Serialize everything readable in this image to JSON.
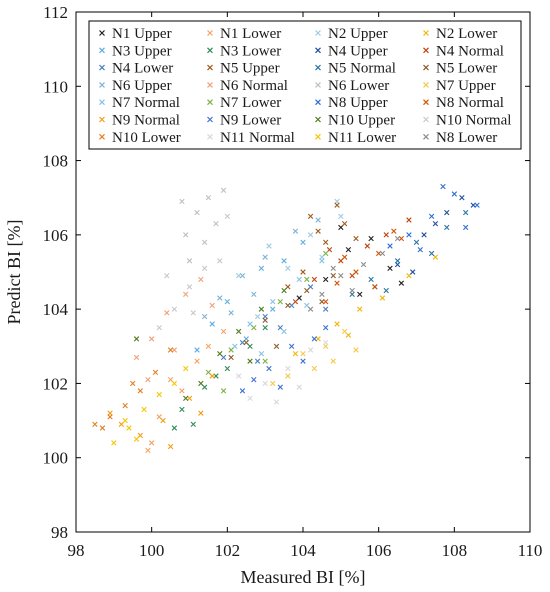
{
  "chart_data": {
    "type": "scatter",
    "xlabel": "Measured BI [%]",
    "ylabel": "Predict BI [%]",
    "xlim": [
      98,
      110
    ],
    "ylim": [
      98,
      112
    ],
    "xticks": [
      98,
      100,
      102,
      104,
      106,
      108,
      110
    ],
    "yticks": [
      98,
      100,
      102,
      104,
      106,
      108,
      110,
      112
    ],
    "xtick_labels": [
      "98",
      "100",
      "102",
      "104",
      "106",
      "108",
      "110"
    ],
    "ytick_labels": [
      "98",
      "100",
      "102",
      "104",
      "106",
      "108",
      "110",
      "112"
    ],
    "grid": false,
    "legend_position": "top",
    "marker": "x",
    "series": [
      {
        "name": "N1 Upper",
        "color": "#1f1f1f",
        "points": [
          [
            105.2,
            105.6
          ],
          [
            105.8,
            105.9
          ],
          [
            106.3,
            105.1
          ],
          [
            104.6,
            104.8
          ],
          [
            105.0,
            106.2
          ],
          [
            106.6,
            104.7
          ],
          [
            103.9,
            104.3
          ],
          [
            105.5,
            104.4
          ]
        ]
      },
      {
        "name": "N1 Lower",
        "color": "#f4a261",
        "points": [
          [
            99.9,
            100.2
          ],
          [
            100.2,
            101.1
          ],
          [
            100.8,
            101.8
          ],
          [
            101.2,
            102.6
          ],
          [
            100.0,
            100.4
          ],
          [
            101.5,
            103.0
          ],
          [
            100.5,
            102.1
          ],
          [
            101.9,
            103.4
          ]
        ]
      },
      {
        "name": "N2 Upper",
        "color": "#9ecae1",
        "points": [
          [
            102.3,
            104.9
          ],
          [
            103.1,
            105.7
          ],
          [
            104.2,
            106.0
          ],
          [
            104.9,
            106.9
          ],
          [
            103.6,
            105.1
          ],
          [
            102.8,
            103.8
          ],
          [
            104.5,
            105.4
          ],
          [
            105.0,
            106.5
          ]
        ]
      },
      {
        "name": "N2 Lower",
        "color": "#f2b705",
        "points": [
          [
            104.4,
            103.2
          ],
          [
            104.9,
            103.6
          ],
          [
            105.5,
            104.0
          ],
          [
            106.1,
            104.3
          ],
          [
            103.8,
            102.8
          ],
          [
            106.8,
            104.9
          ],
          [
            107.5,
            105.4
          ],
          [
            105.2,
            103.3
          ]
        ]
      },
      {
        "name": "N3 Upper",
        "color": "#5dade2",
        "points": [
          [
            102.0,
            104.2
          ],
          [
            102.9,
            105.1
          ],
          [
            103.5,
            105.3
          ],
          [
            101.6,
            103.6
          ],
          [
            104.0,
            105.8
          ],
          [
            102.5,
            103.2
          ],
          [
            103.2,
            104.0
          ],
          [
            101.2,
            102.9
          ]
        ]
      },
      {
        "name": "N3 Lower",
        "color": "#2e8b57",
        "points": [
          [
            100.8,
            101.3
          ],
          [
            101.4,
            101.9
          ],
          [
            102.0,
            102.4
          ],
          [
            102.6,
            103.0
          ],
          [
            101.1,
            100.9
          ],
          [
            103.0,
            103.5
          ],
          [
            101.7,
            102.2
          ],
          [
            100.6,
            100.8
          ]
        ]
      },
      {
        "name": "N4 Upper",
        "color": "#1f4e9e",
        "points": [
          [
            106.5,
            105.2
          ],
          [
            107.2,
            106.0
          ],
          [
            107.8,
            106.6
          ],
          [
            108.2,
            107.0
          ],
          [
            106.9,
            105.0
          ],
          [
            107.5,
            106.3
          ],
          [
            108.5,
            106.8
          ],
          [
            105.9,
            104.6
          ]
        ]
      },
      {
        "name": "N4 Normal",
        "color": "#c1440e",
        "points": [
          [
            104.3,
            104.8
          ],
          [
            105.0,
            105.3
          ],
          [
            105.7,
            105.7
          ],
          [
            106.2,
            106.0
          ],
          [
            103.8,
            104.2
          ],
          [
            105.3,
            104.9
          ],
          [
            106.8,
            106.4
          ],
          [
            104.7,
            105.6
          ]
        ]
      },
      {
        "name": "N4 Lower",
        "color": "#4a7fbf",
        "points": [
          [
            102.4,
            103.1
          ],
          [
            103.0,
            103.8
          ],
          [
            103.7,
            104.1
          ],
          [
            104.2,
            104.6
          ],
          [
            102.8,
            102.6
          ],
          [
            103.4,
            103.5
          ],
          [
            101.9,
            102.7
          ],
          [
            104.6,
            104.0
          ]
        ]
      },
      {
        "name": "N5 Upper",
        "color": "#a05a1b",
        "points": [
          [
            104.0,
            105.0
          ],
          [
            104.6,
            105.8
          ],
          [
            105.1,
            106.3
          ],
          [
            104.2,
            106.5
          ],
          [
            103.6,
            104.6
          ],
          [
            105.4,
            105.9
          ],
          [
            104.9,
            106.8
          ],
          [
            104.4,
            106.1
          ]
        ]
      },
      {
        "name": "N5 Normal",
        "color": "#2874a6",
        "points": [
          [
            105.8,
            104.8
          ],
          [
            106.5,
            105.3
          ],
          [
            107.0,
            105.8
          ],
          [
            107.8,
            106.2
          ],
          [
            106.2,
            104.5
          ],
          [
            105.3,
            104.4
          ],
          [
            107.4,
            105.5
          ],
          [
            108.3,
            106.6
          ]
        ]
      },
      {
        "name": "N5 Lower",
        "color": "#8b5a2b",
        "points": [
          [
            103.0,
            103.7
          ],
          [
            103.6,
            104.1
          ],
          [
            104.1,
            104.5
          ],
          [
            102.5,
            103.1
          ],
          [
            104.5,
            104.2
          ],
          [
            103.3,
            103.0
          ],
          [
            102.1,
            102.7
          ],
          [
            104.8,
            104.9
          ]
        ]
      },
      {
        "name": "N6 Upper",
        "color": "#7fb3d5",
        "points": [
          [
            101.8,
            104.3
          ],
          [
            102.4,
            104.9
          ],
          [
            103.0,
            105.4
          ],
          [
            103.8,
            106.1
          ],
          [
            101.4,
            103.8
          ],
          [
            102.7,
            104.4
          ],
          [
            104.4,
            106.4
          ],
          [
            102.1,
            103.9
          ]
        ]
      },
      {
        "name": "N6 Normal",
        "color": "#f0a07a",
        "points": [
          [
            100.0,
            103.2
          ],
          [
            100.4,
            103.9
          ],
          [
            100.9,
            104.4
          ],
          [
            101.3,
            104.8
          ],
          [
            99.6,
            102.7
          ],
          [
            100.6,
            102.9
          ],
          [
            101.6,
            104.1
          ],
          [
            99.9,
            102.1
          ]
        ]
      },
      {
        "name": "N6 Lower",
        "color": "#bfbfbf",
        "points": [
          [
            100.9,
            106.0
          ],
          [
            101.2,
            106.6
          ],
          [
            101.5,
            107.0
          ],
          [
            101.7,
            106.3
          ],
          [
            101.0,
            105.3
          ],
          [
            101.4,
            105.8
          ],
          [
            100.8,
            106.9
          ],
          [
            101.9,
            107.2
          ]
        ]
      },
      {
        "name": "N7 Upper",
        "color": "#f6c945",
        "points": [
          [
            104.0,
            102.8
          ],
          [
            104.6,
            103.0
          ],
          [
            105.1,
            103.4
          ],
          [
            103.6,
            102.2
          ],
          [
            105.4,
            102.9
          ],
          [
            104.3,
            102.4
          ],
          [
            103.2,
            102.0
          ],
          [
            104.8,
            102.6
          ]
        ]
      },
      {
        "name": "N7 Normal",
        "color": "#85c1e9",
        "points": [
          [
            102.6,
            103.6
          ],
          [
            103.2,
            104.2
          ],
          [
            103.9,
            104.8
          ],
          [
            104.5,
            105.3
          ],
          [
            102.2,
            103.0
          ],
          [
            103.5,
            103.4
          ],
          [
            104.1,
            104.1
          ],
          [
            102.9,
            102.8
          ]
        ]
      },
      {
        "name": "N7 Lower",
        "color": "#7cb342",
        "points": [
          [
            101.5,
            102.3
          ],
          [
            102.1,
            102.9
          ],
          [
            102.7,
            103.5
          ],
          [
            103.4,
            104.2
          ],
          [
            104.1,
            104.8
          ],
          [
            101.9,
            101.8
          ],
          [
            103.0,
            102.6
          ],
          [
            104.6,
            105.5
          ]
        ]
      },
      {
        "name": "N8 Upper",
        "color": "#2e6fd1",
        "points": [
          [
            106.8,
            106.0
          ],
          [
            107.4,
            106.5
          ],
          [
            108.0,
            107.1
          ],
          [
            108.6,
            106.8
          ],
          [
            107.1,
            105.6
          ],
          [
            108.3,
            106.2
          ],
          [
            106.3,
            105.7
          ],
          [
            107.7,
            107.3
          ]
        ]
      },
      {
        "name": "N8 Normal",
        "color": "#d35400",
        "points": [
          [
            105.4,
            105.0
          ],
          [
            106.0,
            105.5
          ],
          [
            106.6,
            105.9
          ],
          [
            104.9,
            104.7
          ],
          [
            105.9,
            104.6
          ],
          [
            106.4,
            106.1
          ],
          [
            104.6,
            104.2
          ],
          [
            105.1,
            105.4
          ]
        ]
      },
      {
        "name": "N9 Normal",
        "color": "#f39c12",
        "points": [
          [
            100.3,
            101.0
          ],
          [
            101.0,
            101.6
          ],
          [
            101.6,
            102.2
          ],
          [
            99.7,
            100.6
          ],
          [
            100.5,
            100.3
          ],
          [
            101.3,
            101.2
          ],
          [
            99.2,
            100.9
          ],
          [
            98.9,
            101.2
          ]
        ]
      },
      {
        "name": "N9 Lower",
        "color": "#3b6fd6",
        "points": [
          [
            103.1,
            102.4
          ],
          [
            103.7,
            103.0
          ],
          [
            104.3,
            103.2
          ],
          [
            102.7,
            102.1
          ],
          [
            104.0,
            102.6
          ],
          [
            103.4,
            101.9
          ],
          [
            104.6,
            103.5
          ],
          [
            102.4,
            101.8
          ]
        ]
      },
      {
        "name": "N10 Upper",
        "color": "#4b7a1a",
        "points": [
          [
            101.8,
            102.8
          ],
          [
            102.3,
            103.4
          ],
          [
            102.9,
            104.0
          ],
          [
            103.5,
            104.5
          ],
          [
            101.3,
            102.0
          ],
          [
            100.9,
            101.6
          ],
          [
            102.6,
            102.6
          ],
          [
            99.6,
            103.2
          ]
        ]
      },
      {
        "name": "N10 Normal",
        "color": "#c8c8c8",
        "points": [
          [
            100.6,
            104.0
          ],
          [
            101.0,
            104.6
          ],
          [
            101.4,
            105.1
          ],
          [
            100.2,
            103.5
          ],
          [
            101.8,
            105.3
          ],
          [
            101.1,
            103.9
          ],
          [
            100.4,
            104.9
          ],
          [
            102.0,
            106.5
          ]
        ]
      },
      {
        "name": "N10 Lower",
        "color": "#e67e22",
        "points": [
          [
            98.5,
            100.9
          ],
          [
            98.9,
            101.1
          ],
          [
            99.3,
            101.4
          ],
          [
            99.7,
            101.8
          ],
          [
            100.1,
            102.3
          ],
          [
            100.5,
            102.9
          ],
          [
            98.7,
            100.8
          ],
          [
            99.5,
            102.0
          ]
        ]
      },
      {
        "name": "N11 Normal",
        "color": "#d9d9d9",
        "points": [
          [
            103.0,
            102.0
          ],
          [
            103.6,
            102.4
          ],
          [
            104.2,
            102.9
          ],
          [
            102.6,
            101.6
          ],
          [
            103.9,
            101.9
          ],
          [
            102.3,
            102.2
          ],
          [
            104.6,
            103.1
          ],
          [
            103.3,
            101.5
          ]
        ]
      },
      {
        "name": "N11 Lower",
        "color": "#f7c600",
        "points": [
          [
            99.0,
            100.4
          ],
          [
            99.4,
            100.8
          ],
          [
            99.8,
            101.3
          ],
          [
            100.2,
            101.7
          ],
          [
            99.6,
            100.5
          ],
          [
            100.6,
            102.0
          ],
          [
            99.3,
            101.0
          ],
          [
            100.9,
            102.4
          ]
        ]
      },
      {
        "name": "N8 Lower",
        "color": "#8c8c8c",
        "points": [
          [
            104.5,
            104.4
          ],
          [
            105.0,
            104.9
          ],
          [
            105.6,
            105.2
          ],
          [
            106.1,
            105.5
          ],
          [
            104.2,
            104.0
          ],
          [
            105.3,
            104.5
          ],
          [
            106.5,
            105.9
          ],
          [
            104.8,
            105.1
          ]
        ]
      }
    ]
  }
}
